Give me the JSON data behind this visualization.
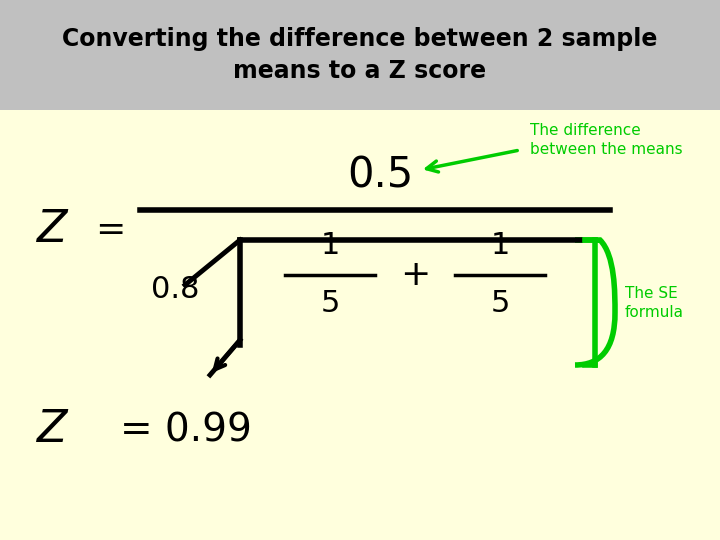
{
  "title": "Converting the difference between 2 sample\nmeans to a Z score",
  "title_bg": "#c0c0c0",
  "bg_color": "#ffffdd",
  "green_color": "#00cc00",
  "black_color": "#000000",
  "numerator": "0.5",
  "denominator_coeff": "0.8",
  "frac1_num": "1",
  "frac1_den": "5",
  "frac2_num": "1",
  "frac2_den": "5",
  "result_z": "Z",
  "result_eq": "= 0.99",
  "label_diff": "The difference\nbetween the means",
  "label_se": "The SE\nformula",
  "Z_label": "Z",
  "figw": 7.2,
  "figh": 5.4,
  "dpi": 100
}
